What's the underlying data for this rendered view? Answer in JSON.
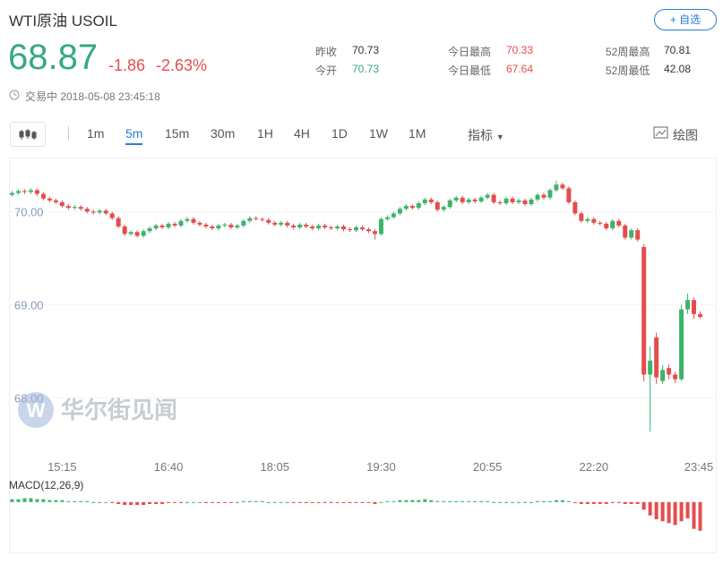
{
  "header": {
    "title": "WTI原油",
    "symbol": "USOIL",
    "button": "+ 自选"
  },
  "quote": {
    "price": "68.87",
    "change": "-1.86",
    "change_pct": "-2.63%",
    "status": "交易中 2018-05-08 23:45:18"
  },
  "stats": [
    {
      "label": "昨收",
      "value": "70.73"
    },
    {
      "label": "今开",
      "value": "70.73"
    },
    {
      "label": "今日最高",
      "value": "70.33"
    },
    {
      "label": "今日最低",
      "value": "67.64"
    },
    {
      "label": "52周最高",
      "value": "70.81"
    },
    {
      "label": "52周最低",
      "value": "42.08"
    }
  ],
  "toolbar": {
    "intervals": [
      "1m",
      "5m",
      "15m",
      "30m",
      "1H",
      "4H",
      "1D",
      "1W",
      "1M"
    ],
    "active": 1,
    "indicators": "指标",
    "draw": "绘图"
  },
  "chart_data": {
    "type": "candlestick",
    "watermark": "华尔街见闻",
    "up_color": "#3db36b",
    "down_color": "#e54d4d",
    "ylim": [
      67.37,
      70.58
    ],
    "yticks": [
      {
        "value": 70,
        "label": "70.00"
      },
      {
        "value": 69,
        "label": "69.00"
      },
      {
        "value": 68,
        "label": "68.00"
      }
    ],
    "categories": [
      null,
      null,
      null,
      null,
      null,
      null,
      null,
      null,
      "15:15",
      null,
      null,
      null,
      null,
      null,
      null,
      null,
      null,
      null,
      null,
      null,
      null,
      null,
      null,
      null,
      null,
      "16:40",
      null,
      null,
      null,
      null,
      null,
      null,
      null,
      null,
      null,
      null,
      null,
      null,
      null,
      null,
      null,
      null,
      "18:05",
      null,
      null,
      null,
      null,
      null,
      null,
      null,
      null,
      null,
      null,
      null,
      null,
      null,
      null,
      null,
      null,
      "19:30",
      null,
      null,
      null,
      null,
      null,
      null,
      null,
      null,
      null,
      null,
      null,
      null,
      null,
      null,
      null,
      null,
      "20:55",
      null,
      null,
      null,
      null,
      null,
      null,
      null,
      null,
      null,
      null,
      null,
      null,
      null,
      null,
      null,
      null,
      "22:20",
      null,
      null,
      null,
      null,
      null,
      null,
      null,
      null,
      null,
      null,
      null,
      null,
      null,
      null,
      null,
      null,
      "23:45"
    ],
    "candles": [
      [
        70.18,
        70.22,
        70.16,
        70.2
      ],
      [
        70.2,
        70.24,
        70.18,
        70.22
      ],
      [
        70.22,
        70.24,
        70.19,
        70.21
      ],
      [
        70.21,
        70.25,
        70.19,
        70.23
      ],
      [
        70.23,
        70.25,
        70.17,
        70.19
      ],
      [
        70.19,
        70.21,
        70.12,
        70.14
      ],
      [
        70.14,
        70.16,
        70.1,
        70.12
      ],
      [
        70.12,
        70.14,
        70.08,
        70.1
      ],
      [
        70.1,
        70.12,
        70.04,
        70.06
      ],
      [
        70.06,
        70.08,
        70.02,
        70.04
      ],
      [
        70.04,
        70.07,
        70.02,
        70.05
      ],
      [
        70.05,
        70.07,
        70.01,
        70.03
      ],
      [
        70.03,
        70.05,
        69.98,
        70.0
      ],
      [
        70.0,
        70.02,
        69.97,
        69.99
      ],
      [
        69.99,
        70.03,
        69.97,
        70.01
      ],
      [
        70.01,
        70.03,
        69.96,
        69.98
      ],
      [
        69.98,
        70.0,
        69.91,
        69.93
      ],
      [
        69.93,
        69.95,
        69.82,
        69.84
      ],
      [
        69.84,
        69.86,
        69.74,
        69.76
      ],
      [
        69.76,
        69.8,
        69.74,
        69.78
      ],
      [
        69.78,
        69.8,
        69.72,
        69.74
      ],
      [
        69.74,
        69.81,
        69.72,
        69.79
      ],
      [
        69.79,
        69.84,
        69.77,
        69.82
      ],
      [
        69.82,
        69.87,
        69.8,
        69.85
      ],
      [
        69.85,
        69.87,
        69.81,
        69.83
      ],
      [
        69.83,
        69.89,
        69.81,
        69.87
      ],
      [
        69.87,
        69.89,
        69.83,
        69.85
      ],
      [
        69.85,
        69.92,
        69.83,
        69.9
      ],
      [
        69.9,
        69.94,
        69.88,
        69.92
      ],
      [
        69.92,
        69.94,
        69.86,
        69.88
      ],
      [
        69.88,
        69.9,
        69.84,
        69.86
      ],
      [
        69.86,
        69.88,
        69.82,
        69.84
      ],
      [
        69.84,
        69.86,
        69.8,
        69.82
      ],
      [
        69.82,
        69.87,
        69.8,
        69.85
      ],
      [
        69.85,
        69.88,
        69.83,
        69.86
      ],
      [
        69.86,
        69.88,
        69.81,
        69.83
      ],
      [
        69.83,
        69.87,
        69.81,
        69.85
      ],
      [
        69.85,
        69.92,
        69.83,
        69.9
      ],
      [
        69.9,
        69.95,
        69.88,
        69.93
      ],
      [
        69.93,
        69.95,
        69.9,
        69.92
      ],
      [
        69.92,
        69.94,
        69.89,
        69.91
      ],
      [
        69.91,
        69.93,
        69.86,
        69.88
      ],
      [
        69.88,
        69.9,
        69.84,
        69.86
      ],
      [
        69.86,
        69.9,
        69.84,
        69.88
      ],
      [
        69.88,
        69.9,
        69.83,
        69.85
      ],
      [
        69.85,
        69.87,
        69.81,
        69.83
      ],
      [
        69.83,
        69.88,
        69.81,
        69.86
      ],
      [
        69.86,
        69.88,
        69.82,
        69.84
      ],
      [
        69.84,
        69.86,
        69.8,
        69.82
      ],
      [
        69.82,
        69.87,
        69.8,
        69.85
      ],
      [
        69.85,
        69.87,
        69.81,
        69.83
      ],
      [
        69.83,
        69.85,
        69.8,
        69.82
      ],
      [
        69.82,
        69.86,
        69.8,
        69.84
      ],
      [
        69.84,
        69.86,
        69.79,
        69.81
      ],
      [
        69.81,
        69.83,
        69.78,
        69.8
      ],
      [
        69.8,
        69.85,
        69.78,
        69.83
      ],
      [
        69.83,
        69.85,
        69.79,
        69.81
      ],
      [
        69.81,
        69.83,
        69.77,
        69.79
      ],
      [
        69.79,
        69.81,
        69.7,
        69.76
      ],
      [
        69.76,
        69.94,
        69.74,
        69.92
      ],
      [
        69.92,
        69.96,
        69.9,
        69.94
      ],
      [
        69.94,
        70.0,
        69.92,
        69.98
      ],
      [
        69.98,
        70.05,
        69.96,
        70.03
      ],
      [
        70.03,
        70.08,
        70.01,
        70.06
      ],
      [
        70.06,
        70.08,
        70.02,
        70.04
      ],
      [
        70.04,
        70.11,
        70.02,
        70.09
      ],
      [
        70.09,
        70.15,
        70.07,
        70.13
      ],
      [
        70.13,
        70.15,
        70.08,
        70.1
      ],
      [
        70.1,
        70.12,
        70.0,
        70.02
      ],
      [
        70.02,
        70.07,
        70.0,
        70.05
      ],
      [
        70.05,
        70.14,
        70.03,
        70.12
      ],
      [
        70.12,
        70.17,
        70.1,
        70.15
      ],
      [
        70.15,
        70.17,
        70.08,
        70.1
      ],
      [
        70.1,
        70.15,
        70.08,
        70.13
      ],
      [
        70.13,
        70.15,
        70.09,
        70.11
      ],
      [
        70.11,
        70.17,
        70.09,
        70.15
      ],
      [
        70.15,
        70.2,
        70.13,
        70.18
      ],
      [
        70.18,
        70.2,
        70.08,
        70.1
      ],
      [
        70.1,
        70.12,
        70.07,
        70.09
      ],
      [
        70.09,
        70.16,
        70.07,
        70.14
      ],
      [
        70.14,
        70.16,
        70.08,
        70.1
      ],
      [
        70.1,
        70.14,
        70.08,
        70.12
      ],
      [
        70.12,
        70.14,
        70.06,
        70.08
      ],
      [
        70.08,
        70.15,
        70.06,
        70.13
      ],
      [
        70.13,
        70.2,
        70.11,
        70.18
      ],
      [
        70.18,
        70.2,
        70.13,
        70.15
      ],
      [
        70.15,
        70.25,
        70.13,
        70.23
      ],
      [
        70.23,
        70.33,
        70.21,
        70.29
      ],
      [
        70.29,
        70.31,
        70.23,
        70.25
      ],
      [
        70.25,
        70.27,
        70.08,
        70.1
      ],
      [
        70.1,
        70.12,
        69.96,
        69.98
      ],
      [
        69.98,
        70.0,
        69.88,
        69.9
      ],
      [
        69.9,
        69.94,
        69.88,
        69.92
      ],
      [
        69.92,
        69.94,
        69.86,
        69.88
      ],
      [
        69.88,
        69.9,
        69.85,
        69.87
      ],
      [
        69.87,
        69.89,
        69.8,
        69.82
      ],
      [
        69.82,
        69.92,
        69.8,
        69.9
      ],
      [
        69.9,
        69.92,
        69.83,
        69.85
      ],
      [
        69.85,
        69.87,
        69.7,
        69.72
      ],
      [
        69.72,
        69.82,
        69.7,
        69.8
      ],
      [
        69.8,
        69.82,
        69.68,
        69.7
      ],
      [
        69.62,
        69.65,
        68.18,
        68.25
      ],
      [
        68.25,
        68.55,
        67.64,
        68.4
      ],
      [
        68.65,
        68.7,
        68.15,
        68.22
      ],
      [
        68.18,
        68.35,
        68.15,
        68.3
      ],
      [
        68.32,
        68.36,
        68.2,
        68.25
      ],
      [
        68.25,
        68.28,
        68.16,
        68.2
      ],
      [
        68.2,
        69.0,
        68.18,
        68.95
      ],
      [
        68.95,
        69.12,
        68.9,
        69.05
      ],
      [
        69.05,
        69.08,
        68.85,
        68.9
      ],
      [
        68.9,
        68.93,
        68.85,
        68.87
      ]
    ],
    "macd": {
      "label": "MACD(12,26,9)",
      "ylim": [
        -0.32,
        0.12
      ],
      "values": [
        0.03,
        0.03,
        0.04,
        0.04,
        0.03,
        0.03,
        0.02,
        0.02,
        0.02,
        0.01,
        0.01,
        0.01,
        0.01,
        0.0,
        0.0,
        0.0,
        -0.01,
        -0.02,
        -0.03,
        -0.03,
        -0.03,
        -0.03,
        -0.02,
        -0.02,
        -0.02,
        -0.01,
        -0.01,
        -0.01,
        0.0,
        0.0,
        0.0,
        -0.01,
        -0.01,
        -0.01,
        -0.01,
        -0.01,
        0.0,
        0.01,
        0.01,
        0.01,
        0.01,
        0.0,
        0.0,
        0.0,
        0.0,
        -0.01,
        -0.01,
        -0.01,
        -0.01,
        -0.01,
        -0.01,
        -0.01,
        -0.01,
        -0.01,
        -0.01,
        -0.01,
        -0.01,
        -0.01,
        -0.02,
        0.0,
        0.01,
        0.01,
        0.02,
        0.02,
        0.02,
        0.02,
        0.03,
        0.02,
        0.01,
        0.01,
        0.01,
        0.01,
        0.01,
        0.01,
        0.01,
        0.01,
        0.01,
        0.0,
        0.0,
        0.0,
        0.0,
        0.0,
        0.0,
        0.0,
        0.01,
        0.01,
        0.01,
        0.02,
        0.02,
        0.01,
        -0.01,
        -0.02,
        -0.02,
        -0.02,
        -0.02,
        -0.02,
        -0.01,
        -0.01,
        -0.02,
        -0.02,
        -0.02,
        -0.08,
        -0.14,
        -0.18,
        -0.2,
        -0.22,
        -0.24,
        -0.2,
        -0.17,
        -0.28,
        -0.3
      ]
    }
  }
}
